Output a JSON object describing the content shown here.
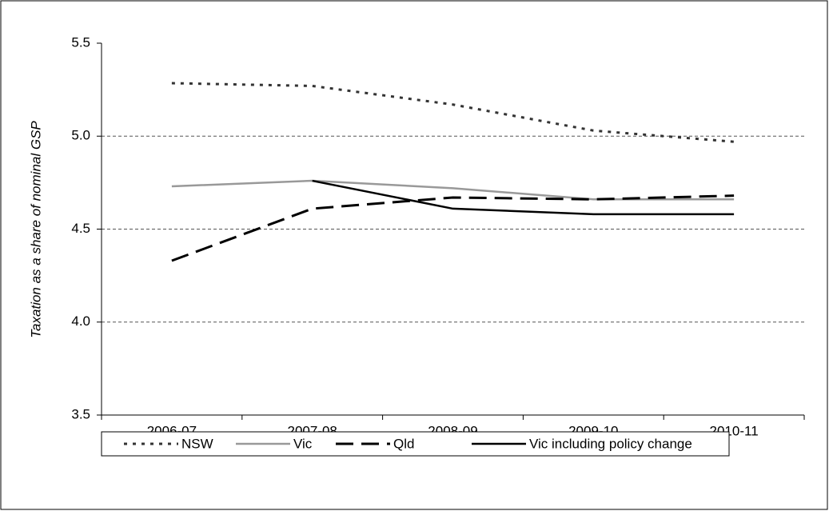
{
  "chart_data": {
    "type": "line",
    "y_label": "Taxation as a share of nominal GSP",
    "categories": [
      "2006-07",
      "2007-08",
      "2008-09",
      "2009-10",
      "2010-11"
    ],
    "series": [
      {
        "name": "NSW",
        "color": "#333333",
        "style": "dotted",
        "values": [
          5.285,
          5.27,
          5.17,
          5.03,
          4.97
        ]
      },
      {
        "name": "Vic",
        "color": "#999999",
        "style": "solid",
        "values": [
          4.73,
          4.76,
          4.72,
          4.66,
          4.66
        ]
      },
      {
        "name": "Qld",
        "color": "#000000",
        "style": "dashed",
        "values": [
          4.33,
          4.61,
          4.67,
          4.66,
          4.68
        ]
      },
      {
        "name": "Vic including policy change",
        "color": "#000000",
        "style": "solid",
        "values": [
          null,
          4.76,
          4.61,
          4.58,
          4.58
        ]
      }
    ],
    "ylim": [
      3.5,
      5.5
    ],
    "yticks": [
      {
        "value": 3.5,
        "label": "3.5"
      },
      {
        "value": 4.0,
        "label": "4.0"
      },
      {
        "value": 4.5,
        "label": "4.5"
      },
      {
        "value": 5.0,
        "label": "5.0"
      },
      {
        "value": 5.5,
        "label": "5.5"
      }
    ],
    "grid": true,
    "legend": "bottom"
  }
}
